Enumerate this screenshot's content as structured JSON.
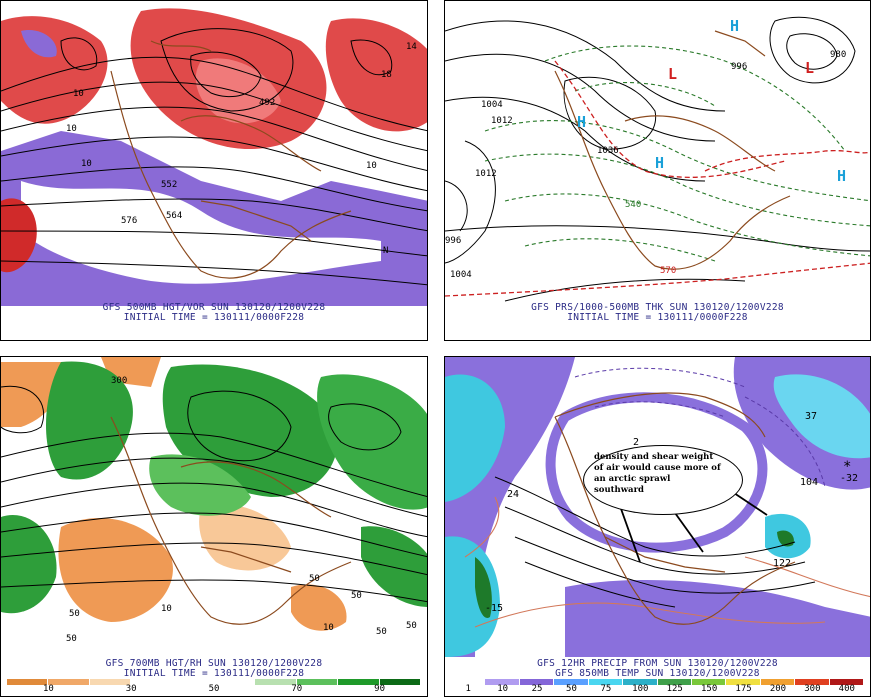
{
  "panels": [
    {
      "id": "p1",
      "caption_line1": "GFS 500MB HGT/VOR SUN 130120/1200V228",
      "caption_line2": "INITIAL TIME = 130111/0000F228",
      "labels": [
        "10",
        "10",
        "10",
        "576",
        "564",
        "552",
        "492",
        "10",
        "N",
        "18",
        "14"
      ],
      "colors": {
        "positive": "#e04a4a",
        "positive_dark": "#b51c1c",
        "negative": "#8a6ad6",
        "contour": "#000000",
        "coast": "#8b4a1e"
      }
    },
    {
      "id": "p2",
      "caption_line1": "GFS PRS/1000-500MB THK SUN 130120/1200V228",
      "caption_line2": "INITIAL TIME = 130111/0000F228",
      "labels": [
        "1004",
        "1012",
        "1012",
        "1004",
        "996",
        "1036",
        "980",
        "540",
        "570",
        "996"
      ],
      "highs": [
        "H",
        "H",
        "H",
        "H"
      ],
      "lows": [
        "L",
        "L"
      ],
      "colors": {
        "high": "#1aa0d8",
        "low": "#d02020",
        "thickness_warm": "#cc2020",
        "thickness_cold": "#2a7a2a"
      }
    },
    {
      "id": "p3",
      "caption_line1": "GFS 700MB HGT/RH SUN 130120/1200V228",
      "caption_line2": "INITIAL TIME = 130111/0000F228",
      "labels": [
        "300",
        "50",
        "50",
        "50",
        "50",
        "10",
        "50",
        "10",
        "50"
      ],
      "legend_ticks": [
        "10",
        "30",
        "50",
        "70",
        "90"
      ],
      "legend_colors": [
        "#e08a3a",
        "#f0a868",
        "#f8d8b0",
        "#ffffff",
        "#ffffff",
        "#ffffff",
        "#b8e0b0",
        "#5cc05c",
        "#1f9a2a",
        "#0c6a16"
      ],
      "colors": {
        "moist": "#2e9e3a",
        "dry": "#ef9a55"
      }
    },
    {
      "id": "p4",
      "caption_line1": "GFS 12HR PRECIP FROM SUN 130120/1200V228",
      "caption_line2": "GFS 850MB TEMP SUN 130120/1200V228",
      "labels": [
        "2",
        "24",
        "104",
        "122",
        "-15",
        "-32",
        "37",
        "*"
      ],
      "legend_ticks": [
        "1",
        "10",
        "25",
        "50",
        "75",
        "100",
        "125",
        "150",
        "175",
        "200",
        "300",
        "400"
      ],
      "legend_colors": [
        "#ffffff",
        "#b09cf0",
        "#8466d8",
        "#5aa0ff",
        "#4ad6f0",
        "#2cb0c8",
        "#3fa04a",
        "#7ac83a",
        "#f0e040",
        "#f0a030",
        "#e04020",
        "#b01818"
      ],
      "annotation": {
        "lines": [
          "density and shear weight",
          "of air would cause more of",
          "an arctic sprawl",
          "southward"
        ]
      },
      "colors": {
        "precip": "#8a70dc",
        "precip_heavy": "#3fc8e0",
        "temp_warm": "#d2785a",
        "temp_cold": "#5a3aa8"
      }
    }
  ]
}
